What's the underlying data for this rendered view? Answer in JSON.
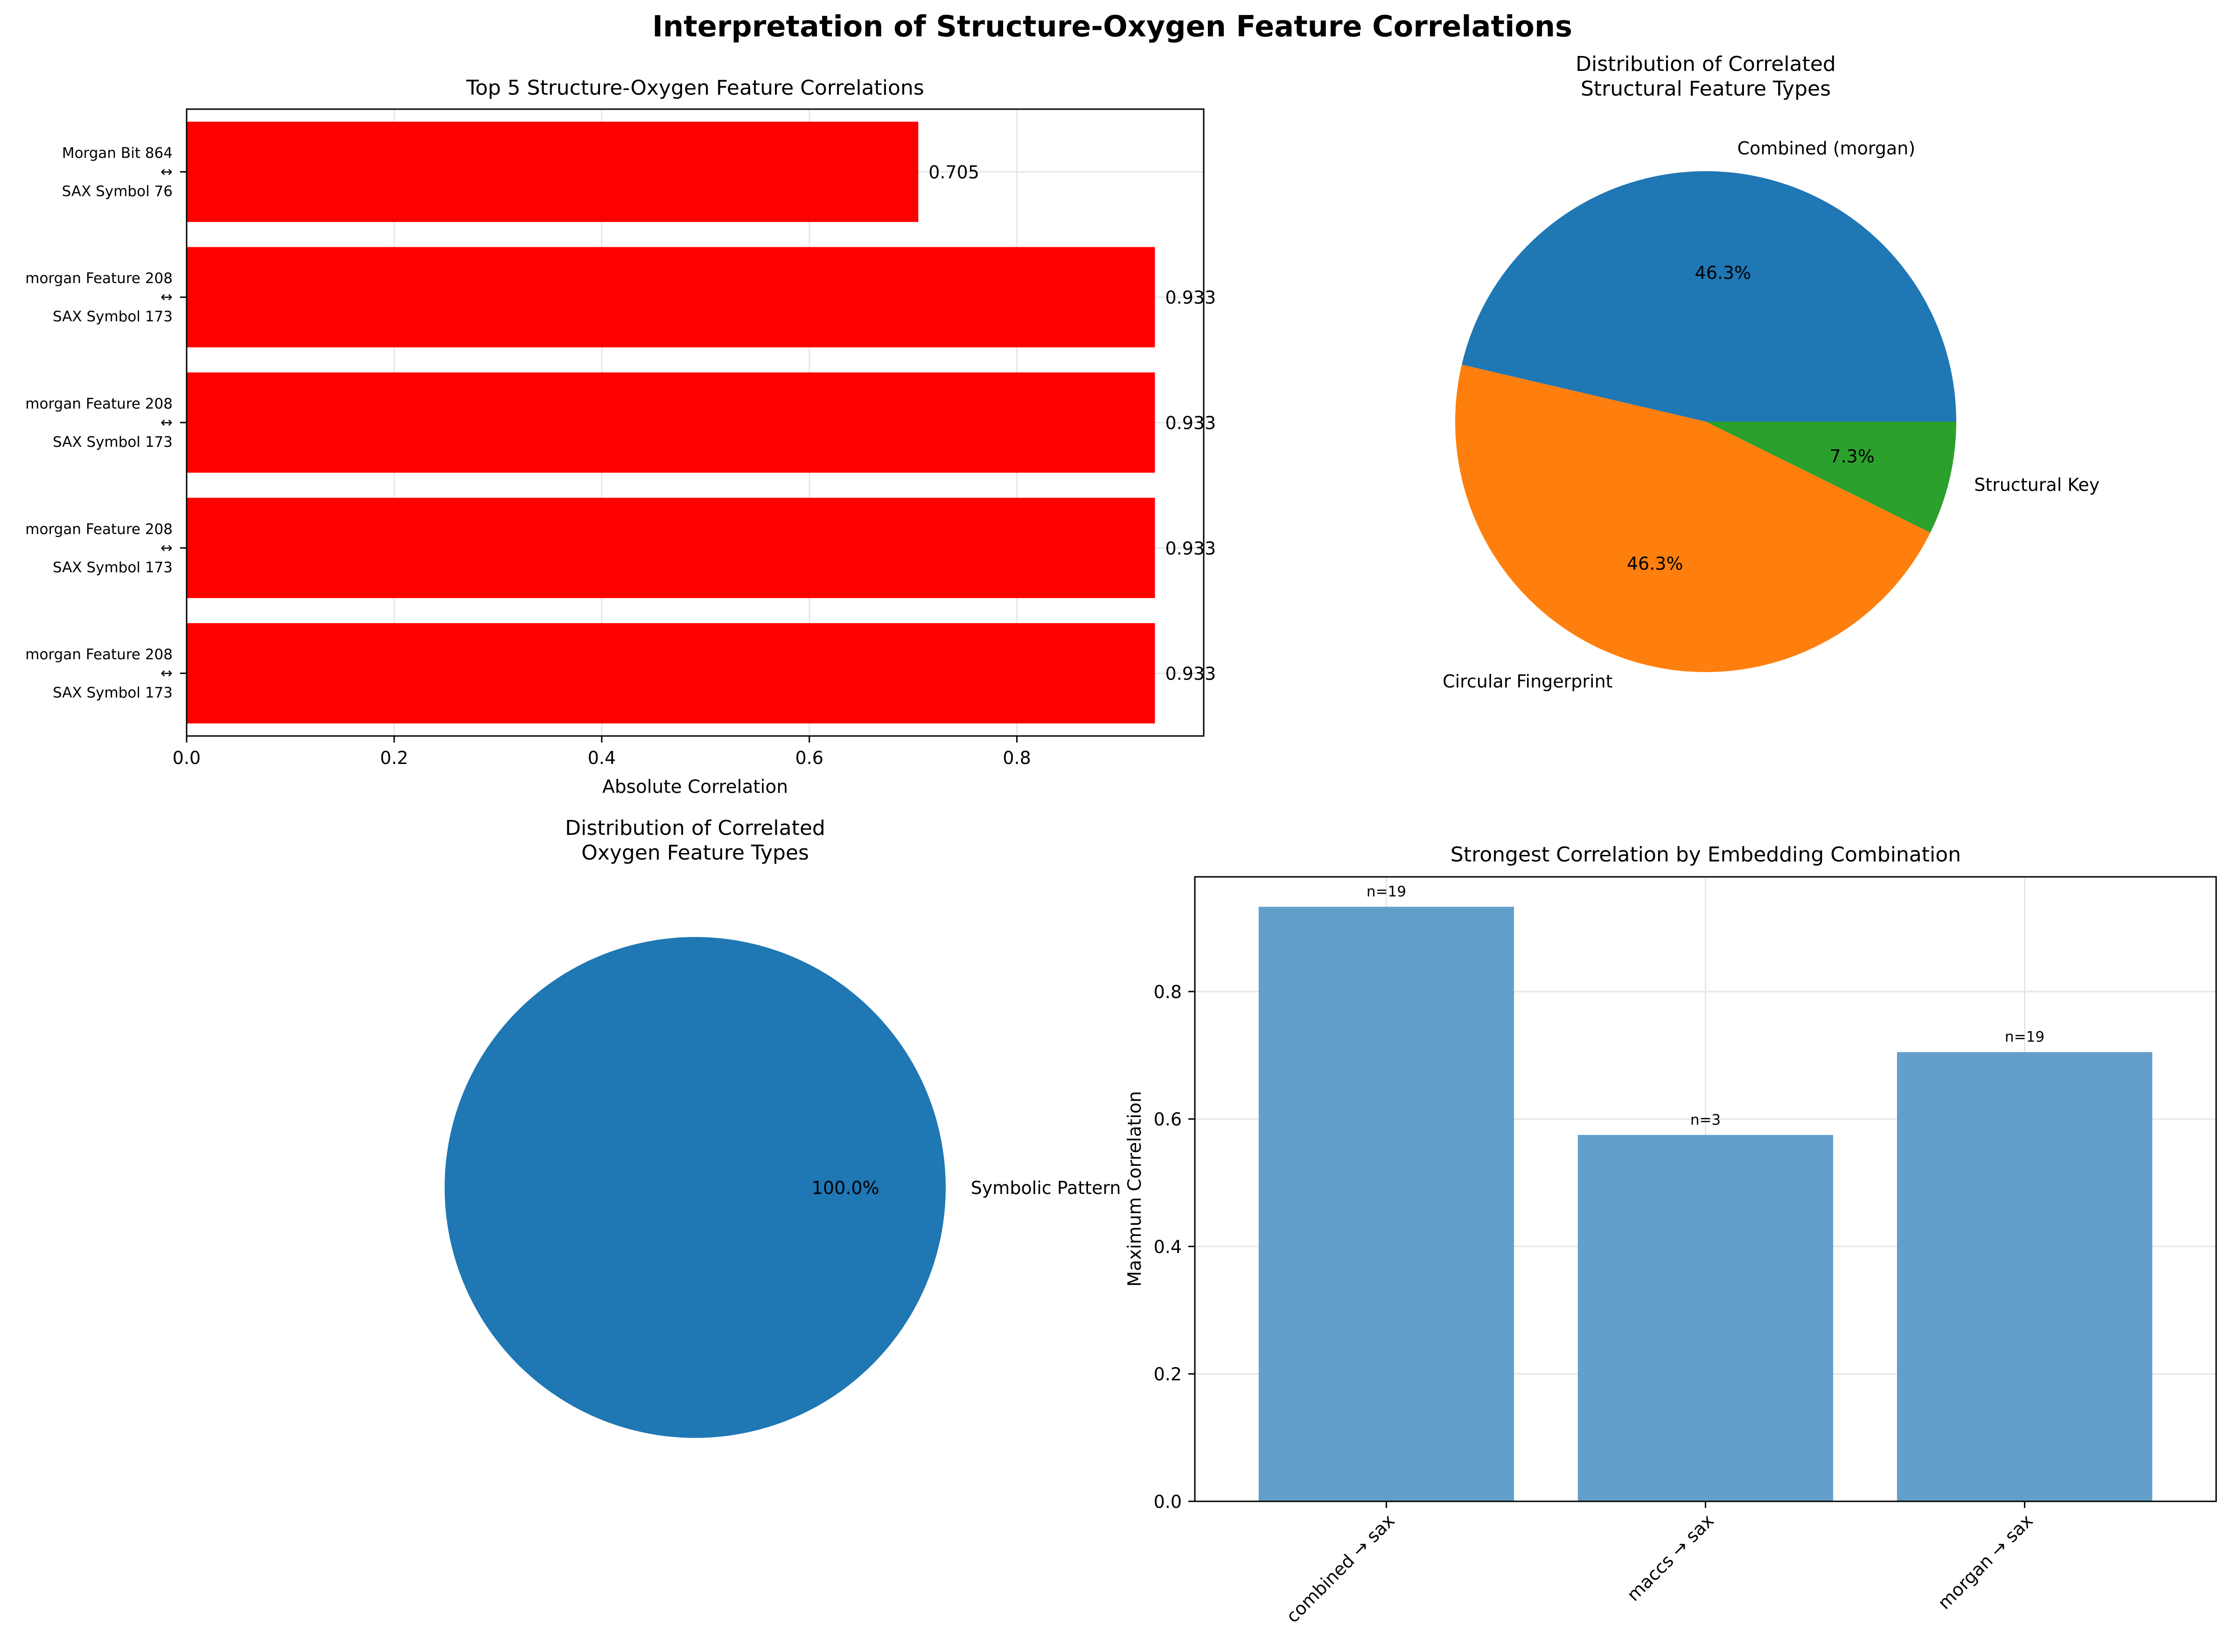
{
  "figure": {
    "title": "Interpretation of Structure-Oxygen Feature Correlations"
  },
  "colors": {
    "bar_red": "#ff0000",
    "pie_blue": "#1f77b4",
    "pie_orange": "#ff7f0e",
    "pie_green": "#2ca02c",
    "bar_blue": "#629fca",
    "grid": "#e6e6e6"
  },
  "chart_data": [
    {
      "type": "bar",
      "orientation": "horizontal",
      "title": "Top 5 Structure-Oxygen Feature Correlations",
      "xlabel": "Absolute Correlation",
      "ylabel": "",
      "xlim": [
        0,
        0.98
      ],
      "xticks": [
        "0.0",
        "0.2",
        "0.4",
        "0.6",
        "0.8"
      ],
      "grid": true,
      "categories": [
        [
          "Morgan Bit 864",
          "↔",
          "SAX Symbol 76"
        ],
        [
          "morgan Feature 208",
          "↔",
          "SAX Symbol 173"
        ],
        [
          "morgan Feature 208",
          "↔",
          "SAX Symbol 173"
        ],
        [
          "morgan Feature 208",
          "↔",
          "SAX Symbol 173"
        ],
        [
          "morgan Feature 208",
          "↔",
          "SAX Symbol 173"
        ]
      ],
      "values": [
        0.705,
        0.933,
        0.933,
        0.933,
        0.933
      ],
      "value_labels": [
        "0.705",
        "0.933",
        "0.933",
        "0.933",
        "0.933"
      ]
    },
    {
      "type": "pie",
      "title": [
        "Distribution of Correlated",
        "Structural Feature Types"
      ],
      "labels": [
        "Combined (morgan)",
        "Circular Fingerprint",
        "Structural Key"
      ],
      "values": [
        46.3,
        46.3,
        7.3
      ],
      "pct_labels": [
        "46.3%",
        "46.3%",
        "7.3%"
      ]
    },
    {
      "type": "pie",
      "title": [
        "Distribution of Correlated",
        "Oxygen Feature Types"
      ],
      "labels": [
        "Symbolic Pattern"
      ],
      "values": [
        100.0
      ],
      "pct_labels": [
        "100.0%"
      ]
    },
    {
      "type": "bar",
      "orientation": "vertical",
      "title": "Strongest Correlation by Embedding Combination",
      "xlabel": "",
      "ylabel": "Maximum Correlation",
      "ylim": [
        0,
        0.98
      ],
      "yticks": [
        "0.0",
        "0.2",
        "0.4",
        "0.6",
        "0.8"
      ],
      "grid": true,
      "categories": [
        "combined → sax",
        "maccs → sax",
        "morgan → sax"
      ],
      "values": [
        0.933,
        0.575,
        0.705
      ],
      "count_labels": [
        "n=19",
        "n=3",
        "n=19"
      ]
    }
  ]
}
